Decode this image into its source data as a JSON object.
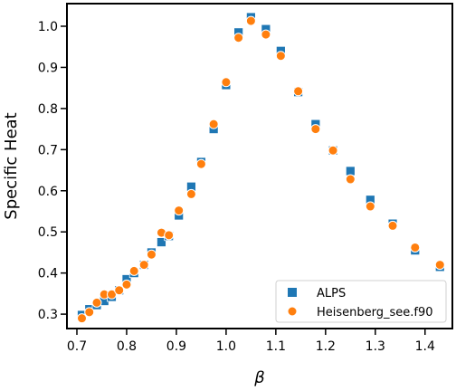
{
  "chart_data": {
    "type": "scatter",
    "xlabel": "β",
    "ylabel": "Specific Heat",
    "xlim": [
      0.68,
      1.455
    ],
    "ylim": [
      0.265,
      1.055
    ],
    "xticks": [
      0.7,
      0.8,
      0.9,
      1.0,
      1.1,
      1.2,
      1.3,
      1.4
    ],
    "xtick_labels": [
      "0.7",
      "0.8",
      "0.9",
      "1.0",
      "1.1",
      "1.2",
      "1.3",
      "1.4"
    ],
    "yticks": [
      0.3,
      0.4,
      0.5,
      0.6,
      0.7,
      0.8,
      0.9,
      1.0
    ],
    "ytick_labels": [
      "0.3",
      "0.4",
      "0.5",
      "0.6",
      "0.7",
      "0.8",
      "0.9",
      "1.0"
    ],
    "legend_position": "lower-right",
    "series": [
      {
        "name": "ALPS",
        "marker": "square",
        "color": "#1f77b4",
        "x": [
          0.71,
          0.725,
          0.74,
          0.755,
          0.77,
          0.785,
          0.8,
          0.815,
          0.835,
          0.85,
          0.87,
          0.885,
          0.905,
          0.93,
          0.95,
          0.975,
          1.0,
          1.025,
          1.05,
          1.08,
          1.11,
          1.145,
          1.18,
          1.215,
          1.25,
          1.29,
          1.335,
          1.38,
          1.43
        ],
        "y": [
          0.298,
          0.312,
          0.322,
          0.332,
          0.342,
          0.358,
          0.385,
          0.4,
          0.42,
          0.45,
          0.475,
          0.49,
          0.54,
          0.61,
          0.67,
          0.75,
          0.857,
          0.985,
          1.022,
          0.993,
          0.94,
          0.84,
          0.762,
          0.698,
          0.648,
          0.578,
          0.52,
          0.455,
          0.415
        ]
      },
      {
        "name": "Heisenberg_see.f90",
        "marker": "circle",
        "color": "#ff7f0e",
        "x": [
          0.71,
          0.725,
          0.74,
          0.755,
          0.77,
          0.785,
          0.8,
          0.815,
          0.835,
          0.85,
          0.87,
          0.885,
          0.905,
          0.93,
          0.95,
          0.975,
          1.0,
          1.025,
          1.05,
          1.08,
          1.11,
          1.145,
          1.18,
          1.215,
          1.25,
          1.29,
          1.335,
          1.38,
          1.43
        ],
        "y": [
          0.29,
          0.305,
          0.328,
          0.348,
          0.348,
          0.358,
          0.372,
          0.405,
          0.42,
          0.445,
          0.498,
          0.492,
          0.552,
          0.592,
          0.665,
          0.762,
          0.864,
          0.972,
          1.013,
          0.98,
          0.928,
          0.842,
          0.75,
          0.698,
          0.628,
          0.562,
          0.515,
          0.462,
          0.42
        ]
      }
    ]
  }
}
